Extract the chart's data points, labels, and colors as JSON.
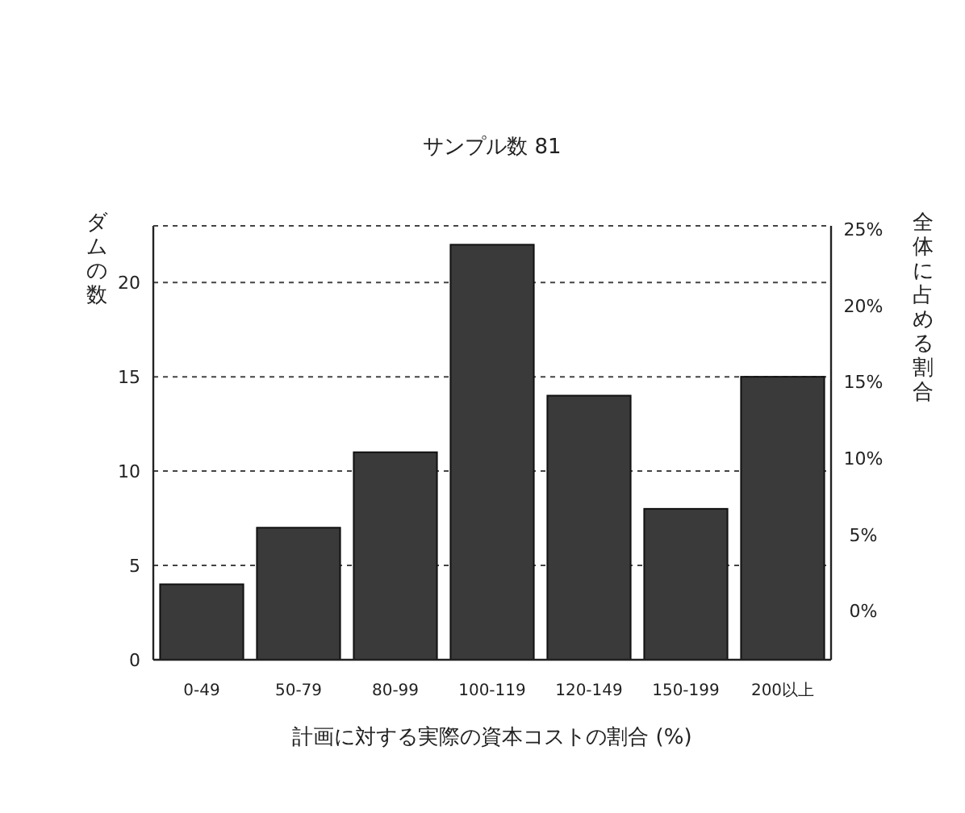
{
  "chart_data": {
    "type": "bar",
    "title": "サンプル数 81",
    "xlabel": "計画に対する実際の資本コストの割合 (%)",
    "ylabel": "ダムの数",
    "y2label": "全体に占める割合",
    "categories": [
      "0-49",
      "50-79",
      "80-99",
      "100-119",
      "120-149",
      "150-199",
      "200以上"
    ],
    "values": [
      4,
      7,
      11,
      22,
      14,
      8,
      15
    ],
    "color": "#3a3a3a",
    "ylim": [
      0,
      23
    ],
    "yticks": [
      0,
      5,
      10,
      15,
      20
    ],
    "y2lim": [
      -3.2,
      25.2
    ],
    "y2ticks": [
      {
        "value": 0,
        "label": "0%"
      },
      {
        "value": 5,
        "label": "5%"
      },
      {
        "value": 10,
        "label": "10%"
      },
      {
        "value": 15,
        "label": "15%"
      },
      {
        "value": 20,
        "label": "20%"
      },
      {
        "value": 25,
        "label": "25%"
      }
    ],
    "grid": "y"
  }
}
